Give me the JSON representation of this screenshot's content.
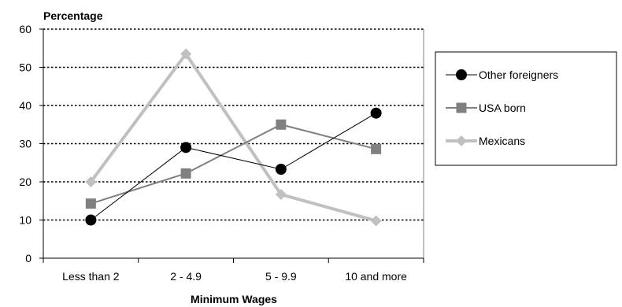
{
  "chart_data": {
    "type": "line",
    "ylabel": "Percentage",
    "xlabel": "Minimum Wages",
    "categories": [
      "Less than 2",
      "2 - 4.9",
      "5 - 9.9",
      "10 and more"
    ],
    "ylim": [
      0,
      60
    ],
    "yticks": [
      0,
      10,
      20,
      30,
      40,
      50,
      60
    ],
    "grid": "horizontal-dotted",
    "legend_position": "right",
    "series": [
      {
        "name": "Other foreigners",
        "values": [
          10,
          29,
          23.3,
          38
        ],
        "color": "#000000",
        "marker": "circle"
      },
      {
        "name": "USA born",
        "values": [
          14.3,
          22.2,
          35,
          28.6
        ],
        "color": "#808080",
        "marker": "square"
      },
      {
        "name": "Mexicans",
        "values": [
          20,
          53.5,
          16.7,
          9.8
        ],
        "color": "#c0c0c0",
        "marker": "diamond"
      }
    ]
  }
}
